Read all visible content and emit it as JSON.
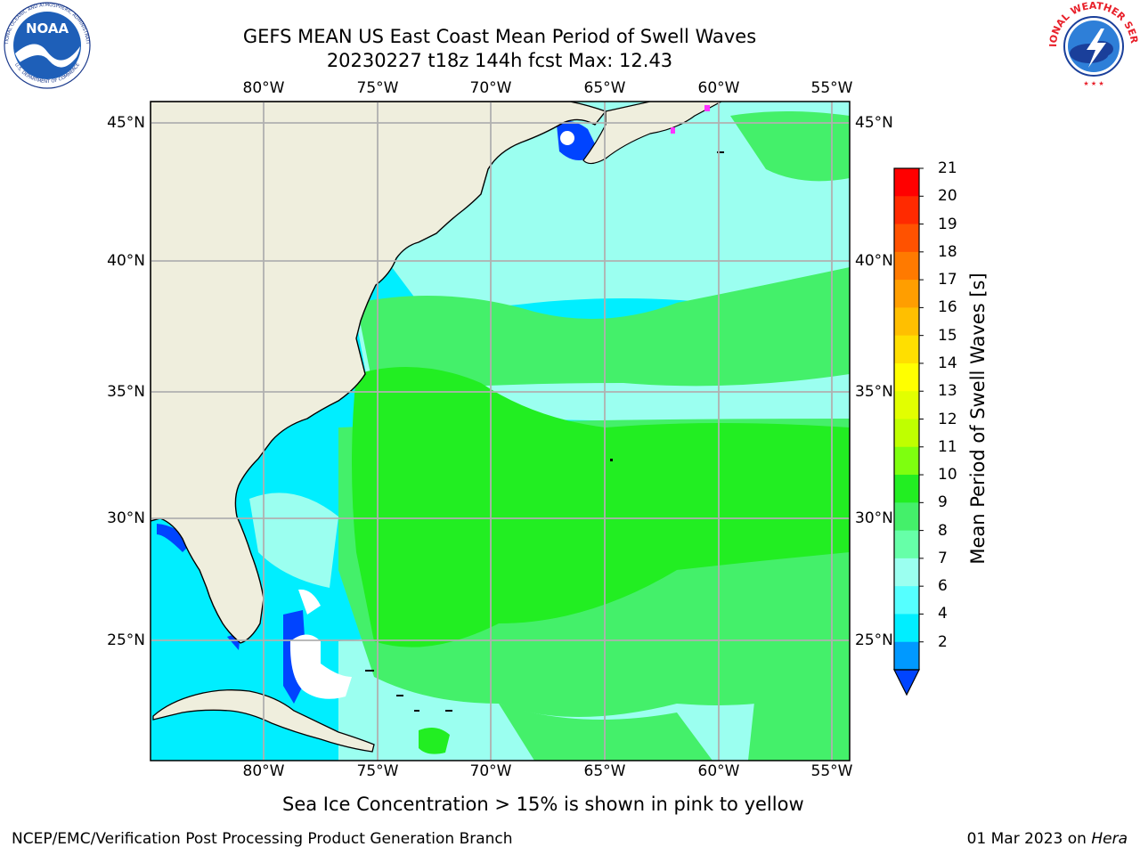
{
  "title": {
    "line1": "GEFS MEAN US East Coast Mean Period of Swell Waves",
    "line2": "20230227 t18z 144h fcst   Max: 12.43"
  },
  "map": {
    "lon_labels": [
      "80°W",
      "75°W",
      "70°W",
      "65°W",
      "60°W",
      "55°W"
    ],
    "lat_labels": [
      "45°N",
      "40°N",
      "35°N",
      "30°N",
      "25°N"
    ]
  },
  "colorbar": {
    "label": "Mean Period of Swell Waves [s]",
    "ticks": [
      "21",
      "20",
      "19",
      "18",
      "17",
      "16",
      "15",
      "14",
      "13",
      "12",
      "11",
      "10",
      "9",
      "8",
      "7",
      "6",
      "4",
      "2"
    ],
    "colors": [
      "#ff0000",
      "#ff2a00",
      "#ff5200",
      "#ff7a00",
      "#ff9e00",
      "#ffbf00",
      "#ffdf00",
      "#ffff00",
      "#e2ff00",
      "#bfff00",
      "#7eff0f",
      "#22ee22",
      "#44f06a",
      "#66ffa8",
      "#9bfff0",
      "#55ffff",
      "#00eeff",
      "#0099ff",
      "#0044ff"
    ]
  },
  "logos": {
    "noaa_text": "NOAA",
    "noaa_ring": "NATIONAL OCEANIC AND ATMOSPHERIC ADMINISTRATION",
    "noaa_ring_bottom": "U.S. DEPARTMENT OF COMMERCE",
    "nws_ring": "NATIONAL WEATHER SERVICE"
  },
  "footer": {
    "note": "Sea Ice Concentration > 15% is shown in pink to yellow",
    "left": "NCEP/EMC/Verification Post Processing Product Generation Branch",
    "date": "01 Mar 2023 on ",
    "machine": "Hera"
  },
  "colors": {
    "land": "#efeedd",
    "grid": "#b0b0b0",
    "ocean_low": "#00eeff",
    "ocean_mid": "#9bfff0",
    "ocean_high": "#44f06a",
    "ocean_peak": "#22ee22",
    "nearshore": "#0044ff"
  }
}
